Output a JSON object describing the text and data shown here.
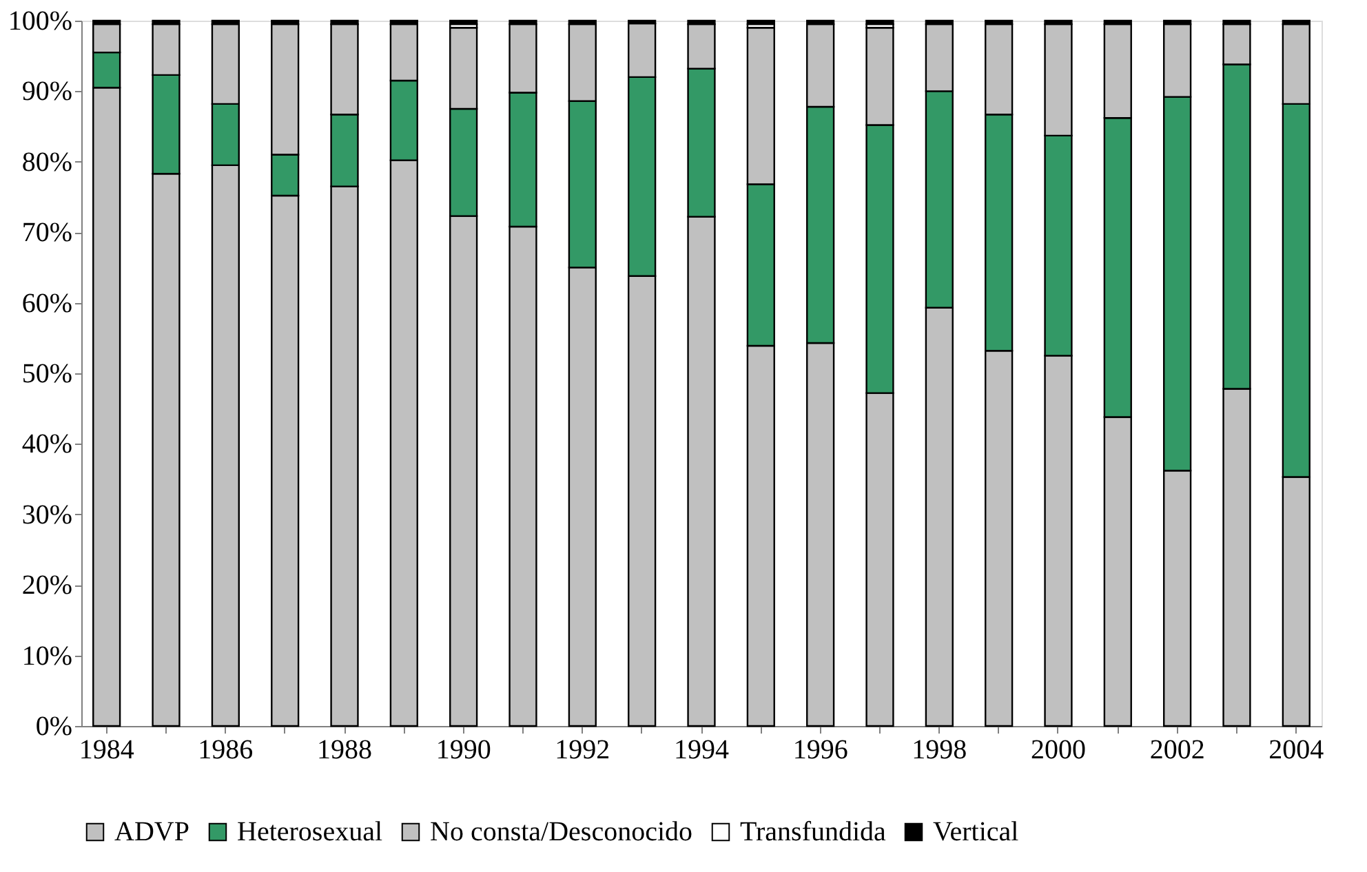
{
  "chart_data": {
    "type": "bar",
    "stacked": true,
    "categories": [
      "1984",
      null,
      "1986",
      null,
      "1988",
      null,
      "1990",
      null,
      "1992",
      null,
      "1994",
      null,
      "1996",
      null,
      "1998",
      null,
      "2000",
      null,
      "2002",
      null,
      "2004"
    ],
    "series": [
      {
        "name": "ADVP",
        "color": "#c0c0c0",
        "values": [
          90.5,
          78.3,
          79.5,
          75.2,
          76.5,
          80.2,
          72.3,
          70.8,
          65.0,
          63.8,
          72.2,
          53.9,
          54.3,
          47.2,
          59.3,
          53.2,
          52.5,
          43.8,
          36.2,
          47.8,
          35.3
        ]
      },
      {
        "name": "Heterosexual",
        "color": "#339966",
        "values": [
          5.0,
          14.0,
          8.7,
          5.8,
          10.2,
          11.3,
          15.2,
          19.0,
          23.6,
          28.2,
          21.0,
          22.9,
          33.5,
          38.0,
          30.7,
          33.5,
          31.2,
          42.4,
          53.0,
          46.0,
          52.9
        ]
      },
      {
        "name": "No consta/Desconocido",
        "color": "#c0c0c0",
        "values": [
          4.0,
          7.2,
          11.3,
          18.5,
          12.8,
          8.0,
          11.5,
          9.7,
          10.9,
          7.6,
          6.3,
          22.2,
          11.7,
          13.8,
          9.5,
          12.8,
          15.8,
          13.3,
          10.3,
          5.7,
          11.3
        ]
      },
      {
        "name": "Transfundida",
        "color": "#ffffff",
        "values": [
          null,
          null,
          null,
          null,
          null,
          null,
          0.5,
          null,
          null,
          null,
          null,
          0.5,
          null,
          0.5,
          null,
          null,
          null,
          null,
          null,
          null,
          null
        ]
      },
      {
        "name": "Vertical",
        "color": "#000000",
        "values": [
          0.5,
          0.5,
          0.5,
          0.5,
          0.5,
          0.5,
          0.5,
          0.5,
          0.5,
          0.4,
          0.5,
          0.5,
          0.5,
          0.5,
          0.5,
          0.5,
          0.5,
          0.5,
          0.5,
          0.5,
          0.5
        ]
      }
    ],
    "ylim": [
      0,
      100
    ],
    "yticks": [
      {
        "value": 0,
        "label": "0%"
      },
      {
        "value": 10,
        "label": "10%"
      },
      {
        "value": 20,
        "label": "20%"
      },
      {
        "value": 30,
        "label": "30%"
      },
      {
        "value": 40,
        "label": "40%"
      },
      {
        "value": 50,
        "label": "50%"
      },
      {
        "value": 60,
        "label": "60%"
      },
      {
        "value": 70,
        "label": "70%"
      },
      {
        "value": 80,
        "label": "80%"
      },
      {
        "value": 90,
        "label": "90%"
      },
      {
        "value": 100,
        "label": "100%"
      }
    ],
    "grid": false,
    "legend": "bottom"
  }
}
